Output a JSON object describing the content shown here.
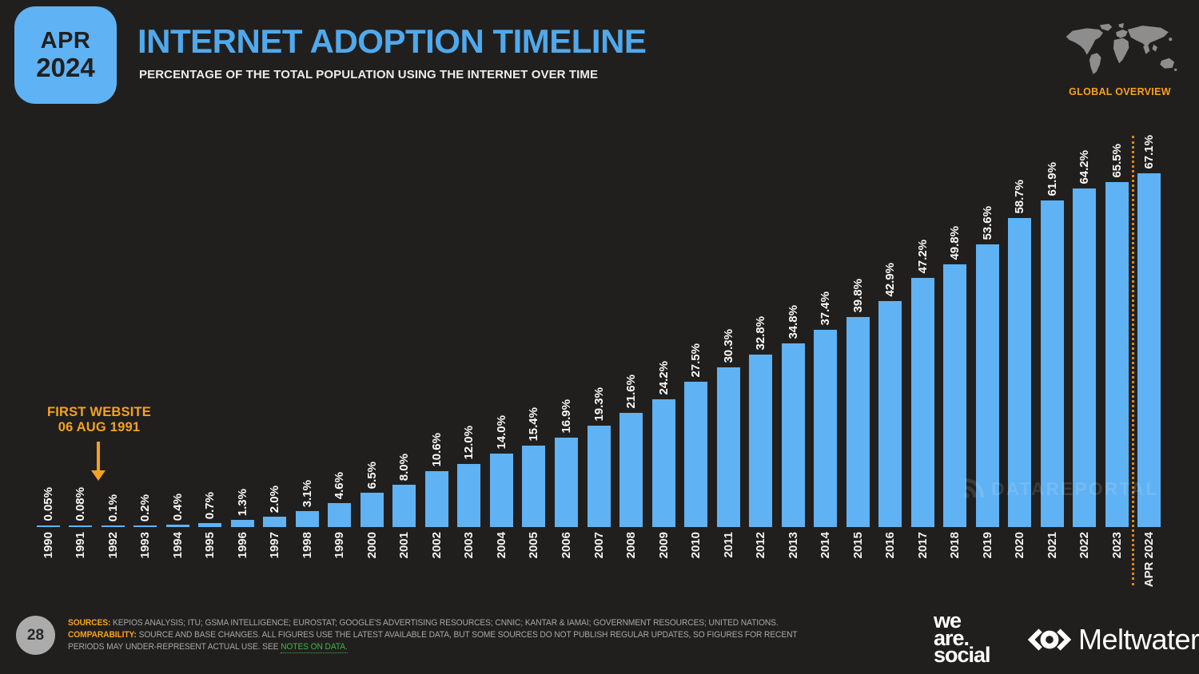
{
  "header": {
    "date_badge": {
      "month": "APR",
      "year": "2024"
    },
    "title": "INTERNET ADOPTION TIMELINE",
    "subtitle": "PERCENTAGE OF THE TOTAL POPULATION USING THE INTERNET OVER TIME",
    "region_label": "GLOBAL OVERVIEW"
  },
  "chart_data": {
    "type": "bar",
    "title": "INTERNET ADOPTION TIMELINE",
    "xlabel": "",
    "ylabel": "Percentage of the total population using the internet",
    "ylim": [
      0,
      70
    ],
    "grid": false,
    "legend": "none",
    "bar_color": "#5FB2F3",
    "categories": [
      "1990",
      "1991",
      "1992",
      "1993",
      "1994",
      "1995",
      "1996",
      "1997",
      "1998",
      "1999",
      "2000",
      "2001",
      "2002",
      "2003",
      "2004",
      "2005",
      "2006",
      "2007",
      "2008",
      "2009",
      "2010",
      "2011",
      "2012",
      "2013",
      "2014",
      "2015",
      "2016",
      "2017",
      "2018",
      "2019",
      "2020",
      "2021",
      "2022",
      "2023",
      "APR 2024"
    ],
    "values": [
      0.05,
      0.08,
      0.1,
      0.2,
      0.4,
      0.7,
      1.3,
      2.0,
      3.1,
      4.6,
      6.5,
      8.0,
      10.6,
      12.0,
      14.0,
      15.4,
      16.9,
      19.3,
      21.6,
      24.2,
      27.5,
      30.3,
      32.8,
      34.8,
      37.4,
      39.8,
      42.9,
      47.2,
      49.8,
      53.6,
      58.7,
      61.9,
      64.2,
      65.5,
      67.1
    ],
    "value_labels": [
      "0.05%",
      "0.08%",
      "0.1%",
      "0.2%",
      "0.4%",
      "0.7%",
      "1.3%",
      "2.0%",
      "3.1%",
      "4.6%",
      "6.5%",
      "8.0%",
      "10.6%",
      "12.0%",
      "14.0%",
      "15.4%",
      "16.9%",
      "19.3%",
      "21.6%",
      "24.2%",
      "27.5%",
      "30.3%",
      "32.8%",
      "34.8%",
      "37.4%",
      "39.8%",
      "42.9%",
      "47.2%",
      "49.8%",
      "53.6%",
      "58.7%",
      "61.9%",
      "64.2%",
      "65.5%",
      "67.1%"
    ],
    "annotation": {
      "line1": "FIRST WEBSITE",
      "line2": "06 AUG 1991",
      "color": "#F6A21E",
      "points_between": [
        "1991",
        "1992"
      ]
    },
    "current_period_separator": {
      "style": "dotted",
      "color": "#DA871C",
      "between": [
        "2023",
        "APR 2024"
      ]
    },
    "watermark": "DATAREPORTAL"
  },
  "footer": {
    "page_number": "28",
    "sources_label": "SOURCES:",
    "sources_text": " KEPIOS ANALYSIS; ITU; GSMA INTELLIGENCE; EUROSTAT; GOOGLE'S ADVERTISING RESOURCES; CNNIC; KANTAR & IAMAI; GOVERNMENT RESOURCES; UNITED NATIONS. ",
    "comparability_label": "COMPARABILITY:",
    "comparability_text": " SOURCE AND BASE CHANGES. ALL FIGURES USE THE LATEST AVAILABLE DATA, BUT SOME SOURCES DO NOT PUBLISH REGULAR UPDATES, SO FIGURES FOR RECENT PERIODS MAY UNDER-REPRESENT ACTUAL USE. SEE ",
    "notes_link": "NOTES ON DATA.",
    "wearesocial": {
      "line1": "we",
      "line2": "are.",
      "line3": "social"
    },
    "meltwater": "Meltwater"
  },
  "colors": {
    "background": "#211F1E",
    "accent_blue": "#5FB2F3",
    "title_blue": "#4FA9EC",
    "accent_orange": "#F6A21E",
    "separator_orange": "#DA871C",
    "link_green": "#3FB549",
    "footer_gray": "#A8A8A8"
  }
}
